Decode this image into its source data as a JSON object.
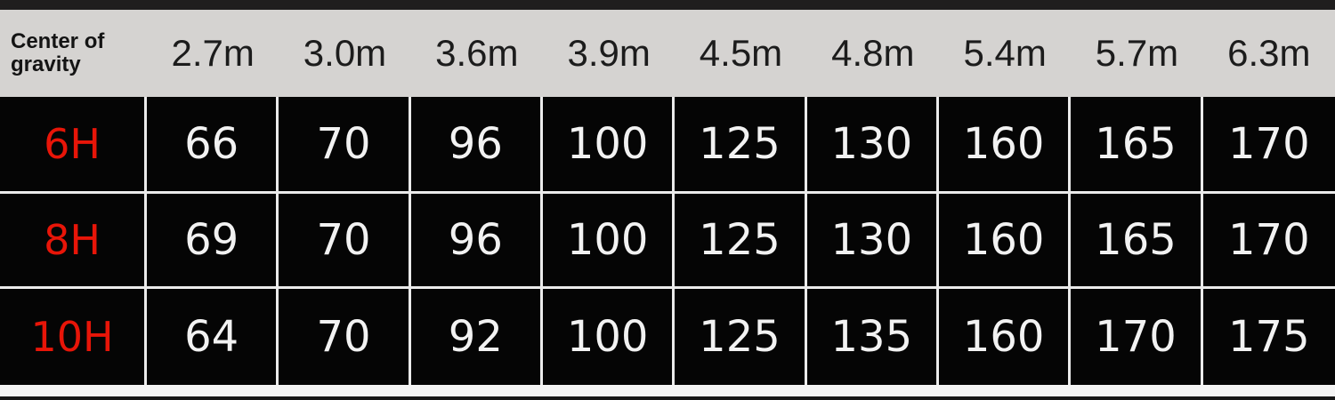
{
  "chart_data": {
    "type": "table",
    "corner_label_line1": "Center of",
    "corner_label_line2": "gravity",
    "columns": [
      "2.7m",
      "3.0m",
      "3.6m",
      "3.9m",
      "4.5m",
      "4.8m",
      "5.4m",
      "5.7m",
      "6.3m"
    ],
    "rows": [
      {
        "label": "6H",
        "values": [
          "66",
          "70",
          "96",
          "100",
          "125",
          "130",
          "160",
          "165",
          "170"
        ]
      },
      {
        "label": "8H",
        "values": [
          "69",
          "70",
          "96",
          "100",
          "125",
          "130",
          "160",
          "165",
          "170"
        ]
      },
      {
        "label": "10H",
        "values": [
          "64",
          "70",
          "92",
          "100",
          "125",
          "135",
          "160",
          "170",
          "175"
        ]
      }
    ]
  },
  "colors": {
    "header_background": "#d5d3d1",
    "header_text": "#1c1c1c",
    "cell_background": "#050505",
    "grid_line": "#ebebeb",
    "row_label_red": "#e81508",
    "value_text": "#f2f2f2"
  }
}
